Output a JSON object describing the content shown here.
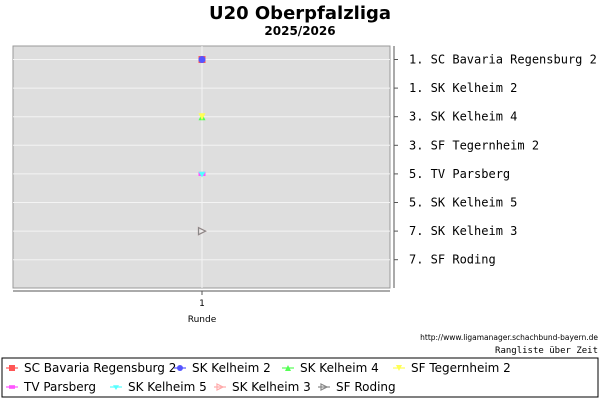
{
  "chart_data": {
    "type": "line",
    "title": "U20 Oberpfalzliga",
    "subtitle": "2025/2026",
    "xlabel": "Runde",
    "x_ticks": [
      1
    ],
    "ylim": [
      8.5,
      0.5
    ],
    "y_inverted": true,
    "grid": true,
    "rank_labels": [
      "1. SC Bavaria Regensburg 2",
      "1. SK Kelheim 2",
      "3. SK Kelheim 4",
      "3. SF Tegernheim 2",
      "5. TV Parsberg",
      "5. SK Kelheim 5",
      "7. SK Kelheim 3",
      "7. SF Roding"
    ],
    "series": [
      {
        "name": "SC Bavaria Regensburg 2",
        "color": "#ff5555",
        "marker": "square",
        "x": [
          1
        ],
        "y": [
          1
        ]
      },
      {
        "name": "SK Kelheim 2",
        "color": "#5555ff",
        "marker": "circle",
        "x": [
          1
        ],
        "y": [
          1
        ]
      },
      {
        "name": "SK Kelheim 4",
        "color": "#55ff55",
        "marker": "triangle-up",
        "x": [
          1
        ],
        "y": [
          3
        ]
      },
      {
        "name": "SF Tegernheim 2",
        "color": "#ffff55",
        "marker": "triangle-down",
        "x": [
          1
        ],
        "y": [
          3
        ]
      },
      {
        "name": "TV Parsberg",
        "color": "#ff55ff",
        "marker": "rect",
        "x": [
          1
        ],
        "y": [
          5
        ]
      },
      {
        "name": "SK Kelheim 5",
        "color": "#55ffff",
        "marker": "heart",
        "x": [
          1
        ],
        "y": [
          5
        ]
      },
      {
        "name": "SK Kelheim 3",
        "color": "#ffaaaa",
        "marker": "triangle-right",
        "x": [
          1
        ],
        "y": [
          7
        ]
      },
      {
        "name": "SF Roding",
        "color": "#888888",
        "marker": "triangle-right",
        "x": [
          1
        ],
        "y": [
          7
        ]
      }
    ],
    "legend_position": "bottom"
  },
  "footer": {
    "url": "http://www.ligamanager.schachbund-bayern.de",
    "caption": "Rangliste über Zeit"
  }
}
